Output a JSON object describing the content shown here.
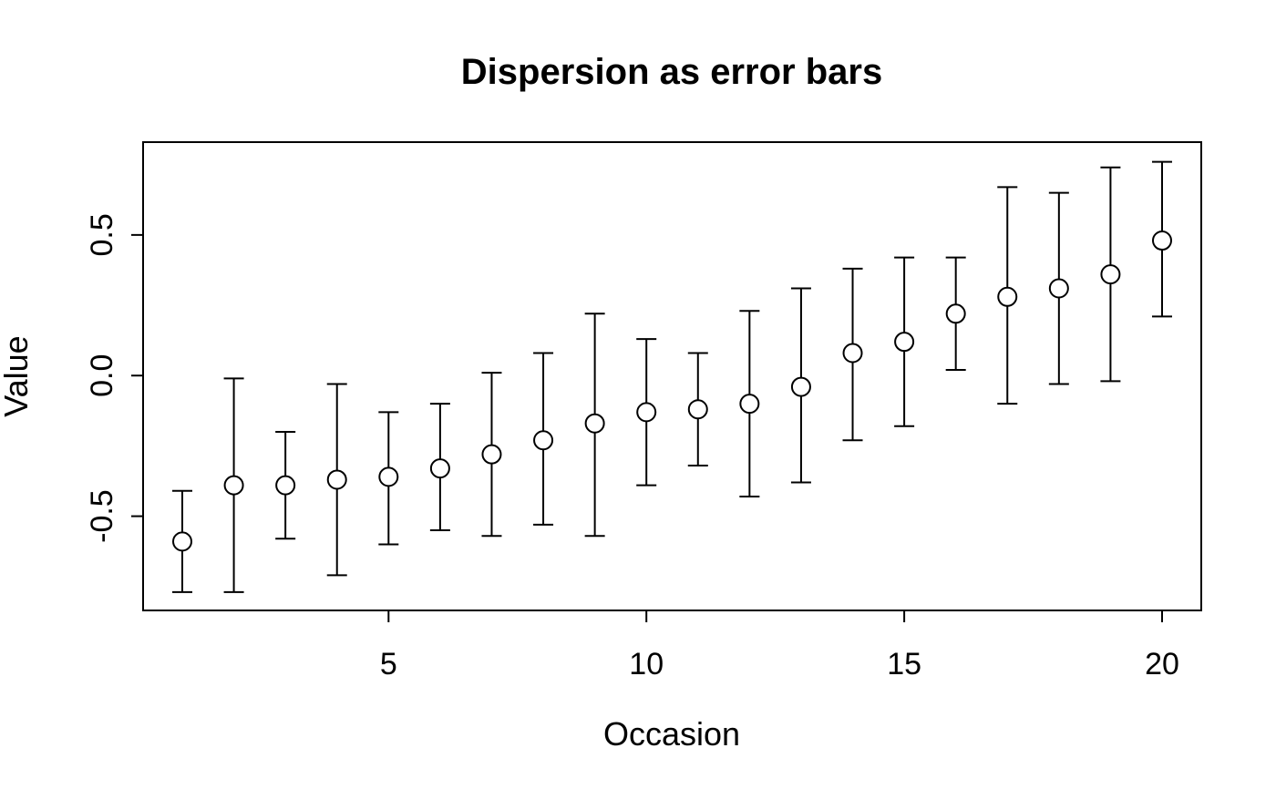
{
  "chart_data": {
    "type": "scatter",
    "subtype": "errorbar",
    "title": "Dispersion as error bars",
    "xlabel": "Occasion",
    "ylabel": "Value",
    "x": [
      1,
      2,
      3,
      4,
      5,
      6,
      7,
      8,
      9,
      10,
      11,
      12,
      13,
      14,
      15,
      16,
      17,
      18,
      19,
      20
    ],
    "series": [
      {
        "name": "center",
        "values": [
          -0.59,
          -0.39,
          -0.39,
          -0.37,
          -0.36,
          -0.33,
          -0.28,
          -0.23,
          -0.17,
          -0.13,
          -0.12,
          -0.1,
          -0.04,
          0.08,
          0.12,
          0.22,
          0.28,
          0.31,
          0.36,
          0.48
        ]
      },
      {
        "name": "upper",
        "values": [
          -0.41,
          -0.01,
          -0.2,
          -0.03,
          -0.13,
          -0.1,
          0.01,
          0.08,
          0.22,
          0.13,
          0.08,
          0.23,
          0.31,
          0.38,
          0.42,
          0.42,
          0.67,
          0.65,
          0.74,
          0.76
        ]
      },
      {
        "name": "lower",
        "values": [
          -0.77,
          -0.77,
          -0.58,
          -0.71,
          -0.6,
          -0.55,
          -0.57,
          -0.53,
          -0.57,
          -0.39,
          -0.32,
          -0.43,
          -0.38,
          -0.23,
          -0.18,
          0.02,
          -0.1,
          -0.03,
          -0.02,
          0.21
        ]
      }
    ],
    "xticks": [
      5,
      10,
      15,
      20
    ],
    "xtick_labels": [
      "5",
      "10",
      "15",
      "20"
    ],
    "yticks": [
      0.5,
      0.0,
      -0.5
    ],
    "ytick_labels": [
      "0.5",
      "0.0",
      "-0.5"
    ],
    "xlim": [
      0.24,
      20.76
    ],
    "ylim": [
      -0.835,
      0.83
    ],
    "grid": false,
    "legend": "none",
    "marker": "open-circle",
    "color": "#000000",
    "background": "#ffffff"
  }
}
